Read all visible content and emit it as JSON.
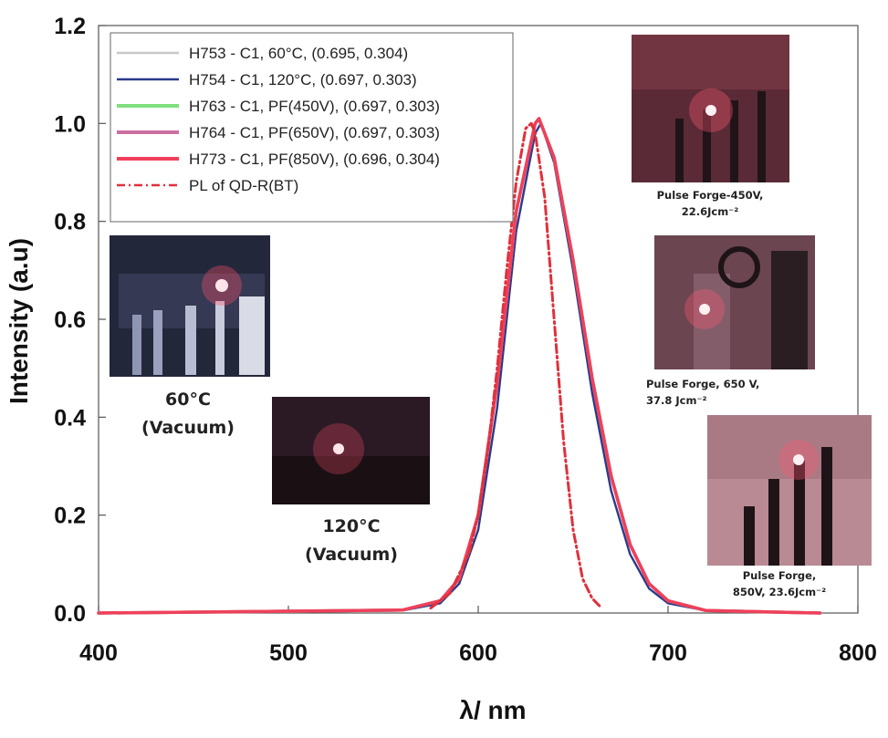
{
  "chart_data": {
    "type": "line",
    "xlabel": "λ/ nm",
    "ylabel": "Intensity (a.u)",
    "xlim": [
      400,
      800
    ],
    "ylim": [
      0,
      1.2
    ],
    "x_ticks": [
      "400",
      "500",
      "600",
      "700",
      "800"
    ],
    "y_ticks": [
      "0.0",
      "0.2",
      "0.4",
      "0.6",
      "0.8",
      "1.0",
      "1.2"
    ],
    "legend_position": "top-left",
    "series": [
      {
        "name": "H753 - C1, 60°C, (0.695, 0.304)",
        "color": "#c8c8c8",
        "style": "solid",
        "x": [
          400,
          560,
          580,
          590,
          600,
          610,
          620,
          630,
          633,
          640,
          650,
          660,
          670,
          680,
          690,
          700,
          720,
          780
        ],
        "y": [
          0,
          0.005,
          0.02,
          0.06,
          0.17,
          0.42,
          0.78,
          0.98,
          1.0,
          0.92,
          0.7,
          0.45,
          0.25,
          0.12,
          0.05,
          0.02,
          0.005,
          0
        ]
      },
      {
        "name": "H754 - C1, 120°C,  (0.697, 0.303)",
        "color": "#2b3a8c",
        "style": "solid",
        "x": [
          400,
          560,
          580,
          590,
          600,
          610,
          620,
          630,
          633,
          640,
          650,
          660,
          670,
          680,
          690,
          700,
          720,
          780
        ],
        "y": [
          0,
          0.005,
          0.02,
          0.06,
          0.17,
          0.42,
          0.78,
          0.98,
          1.0,
          0.92,
          0.7,
          0.45,
          0.25,
          0.12,
          0.05,
          0.02,
          0.005,
          0
        ]
      },
      {
        "name": "H763 - C1, PF(450V), (0.697, 0.303)",
        "color": "#7ee07e",
        "style": "solid",
        "x": [
          400,
          560,
          580,
          590,
          600,
          610,
          620,
          630,
          632,
          640,
          650,
          660,
          670,
          680,
          690,
          700,
          720,
          780
        ],
        "y": [
          0,
          0.006,
          0.025,
          0.07,
          0.2,
          0.47,
          0.82,
          1.0,
          1.01,
          0.93,
          0.72,
          0.48,
          0.28,
          0.14,
          0.06,
          0.025,
          0.005,
          0
        ]
      },
      {
        "name": "H764 - C1, PF(650V), (0.697, 0.303)",
        "color": "#cc6fa0",
        "style": "solid",
        "x": [
          400,
          560,
          580,
          590,
          600,
          610,
          620,
          630,
          632,
          640,
          650,
          660,
          670,
          680,
          690,
          700,
          720,
          780
        ],
        "y": [
          0,
          0.006,
          0.025,
          0.07,
          0.2,
          0.47,
          0.82,
          1.0,
          1.01,
          0.93,
          0.72,
          0.48,
          0.28,
          0.14,
          0.06,
          0.025,
          0.005,
          0
        ]
      },
      {
        "name": "H773 - C1, PF(850V), (0.696, 0.304)",
        "color": "#f0405a",
        "style": "solid",
        "x": [
          400,
          560,
          580,
          590,
          600,
          610,
          620,
          630,
          632,
          640,
          650,
          660,
          670,
          680,
          690,
          700,
          720,
          780
        ],
        "y": [
          0,
          0.006,
          0.025,
          0.07,
          0.2,
          0.47,
          0.82,
          1.0,
          1.01,
          0.93,
          0.72,
          0.48,
          0.28,
          0.14,
          0.06,
          0.025,
          0.005,
          0
        ]
      },
      {
        "name": "PL of QD-R(BT)",
        "color": "#e0303c",
        "style": "dashdot",
        "x": [
          575,
          585,
          595,
          600,
          605,
          610,
          615,
          620,
          625,
          628,
          630,
          635,
          640,
          645,
          650,
          655,
          660,
          665
        ],
        "y": [
          0.01,
          0.04,
          0.12,
          0.2,
          0.33,
          0.5,
          0.7,
          0.88,
          0.99,
          1.0,
          0.98,
          0.85,
          0.6,
          0.35,
          0.17,
          0.07,
          0.03,
          0.01
        ]
      }
    ],
    "insets": [
      {
        "id": "inset-60c",
        "caption": [
          "60°C",
          "(Vacuum)"
        ]
      },
      {
        "id": "inset-120c",
        "caption": [
          "120°C",
          "(Vacuum)"
        ]
      },
      {
        "id": "inset-pf450",
        "caption": [
          "Pulse Forge-450V,",
          "22.6Jcm⁻²"
        ]
      },
      {
        "id": "inset-pf650",
        "caption": [
          "Pulse Forge, 650 V,",
          "37.8 Jcm⁻²"
        ]
      },
      {
        "id": "inset-pf850",
        "caption": [
          "Pulse Forge,",
          "850V, 23.6Jcm⁻²"
        ]
      }
    ]
  }
}
